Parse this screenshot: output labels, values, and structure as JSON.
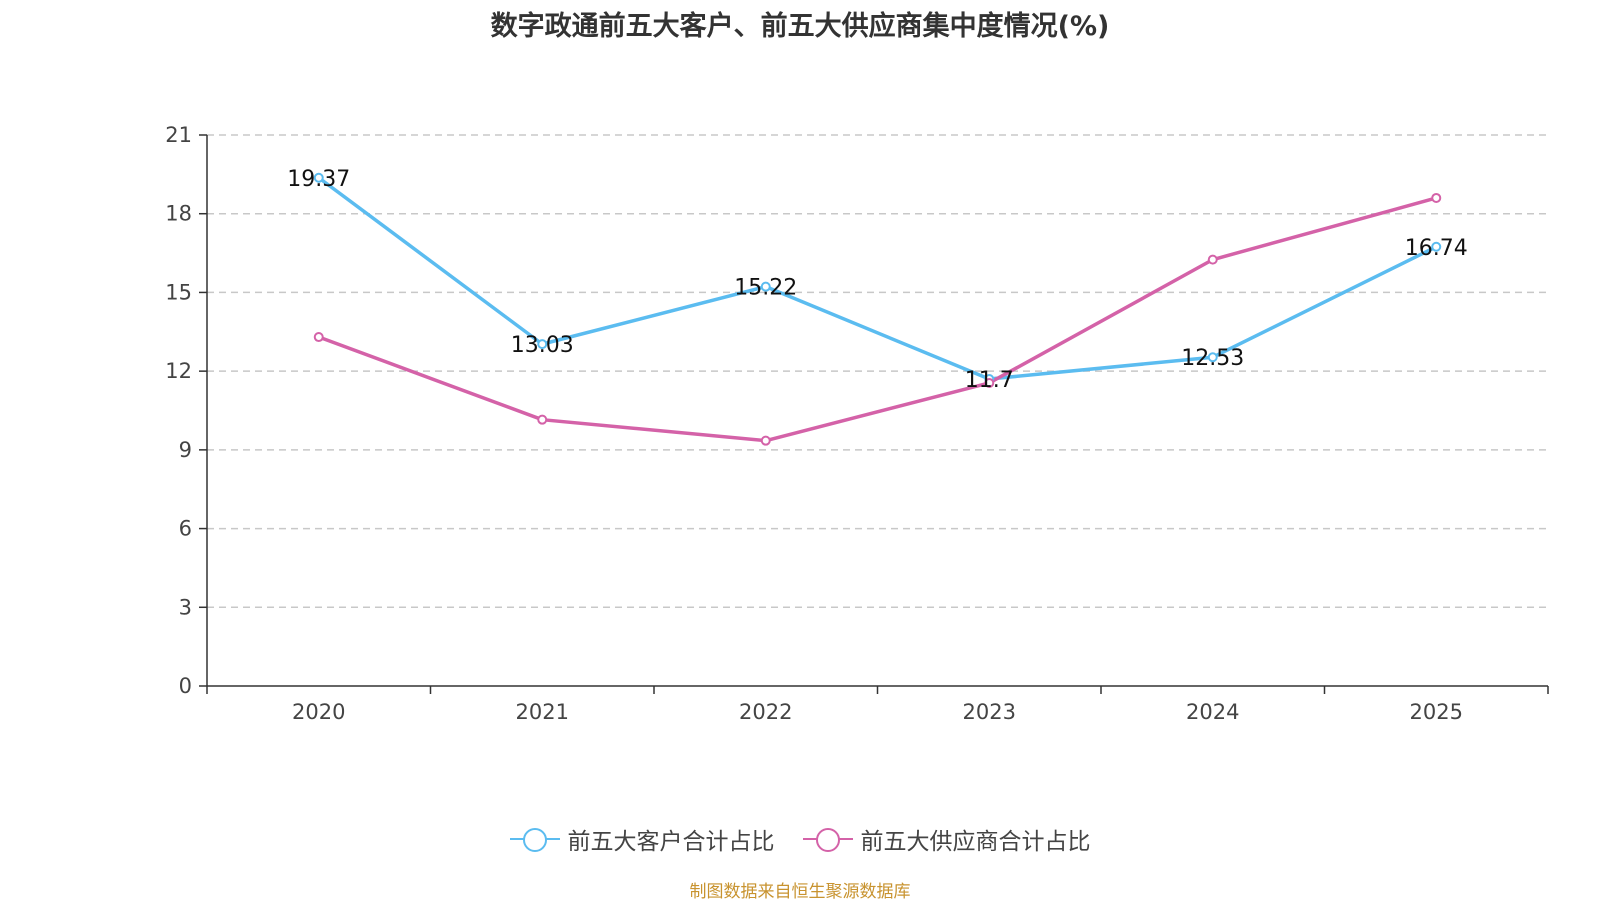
{
  "chart_data": {
    "type": "line",
    "title": "数字政通前五大客户、前五大供应商集中度情况(%)",
    "categories": [
      "2020",
      "2021",
      "2022",
      "2023",
      "2024",
      "2025"
    ],
    "ylim": [
      0,
      21
    ],
    "yticks": [
      0,
      3,
      6,
      9,
      12,
      15,
      18,
      21
    ],
    "grid": true,
    "legend_position": "bottom-center",
    "series": [
      {
        "name": "前五大客户合计占比",
        "color": "#5bbcf0",
        "values": [
          19.37,
          13.03,
          15.22,
          11.7,
          12.53,
          16.74
        ],
        "labels": [
          "19.37",
          "13.03",
          "15.22",
          "11.7",
          "12.53",
          "16.74"
        ]
      },
      {
        "name": "前五大供应商合计占比",
        "color": "#d462a8",
        "values": [
          13.3,
          10.15,
          9.35,
          11.55,
          16.25,
          18.6
        ]
      }
    ]
  },
  "footer": {
    "source": "制图数据来自恒生聚源数据库"
  }
}
